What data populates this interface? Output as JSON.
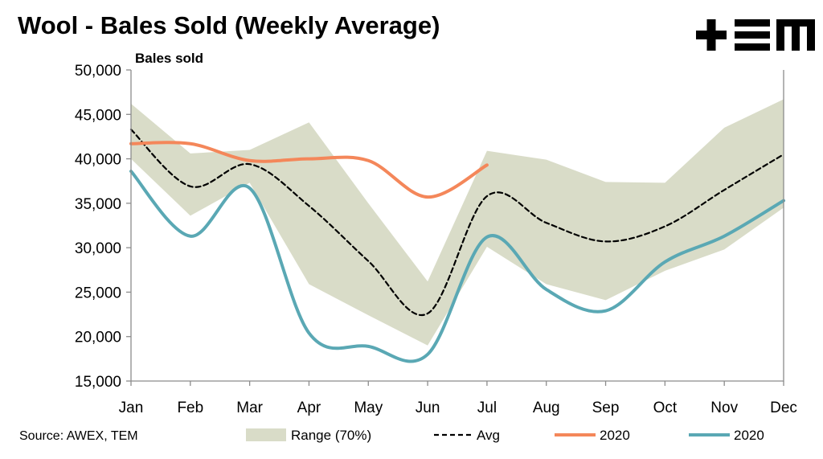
{
  "header": {
    "title": "Wool - Bales Sold (Weekly Average)",
    "logo_icon": "tem-logo-icon"
  },
  "footer": {
    "source": "Source: AWEX, TEM"
  },
  "colors": {
    "range_fill": "#d9dcc8",
    "avg_line": "#000000",
    "orange_2020": "#f4875a",
    "teal_2020": "#5aa8b4",
    "axis": "#8c8c8c"
  },
  "chart_data": {
    "type": "line",
    "title": "Wool - Bales Sold (Weekly Average)",
    "ylabel": "Bales sold",
    "xlabel": "",
    "categories": [
      "Jan",
      "Feb",
      "Mar",
      "Apr",
      "May",
      "Jun",
      "Jul",
      "Aug",
      "Sep",
      "Oct",
      "Nov",
      "Dec"
    ],
    "ylim": [
      15000,
      50000
    ],
    "yticks": [
      "15,000",
      "20,000",
      "25,000",
      "30,000",
      "35,000",
      "40,000",
      "45,000",
      "50,000"
    ],
    "ytick_values": [
      15000,
      20000,
      25000,
      30000,
      35000,
      40000,
      45000,
      50000
    ],
    "grid": false,
    "legend_position": "bottom",
    "range": {
      "name": "Range (70%)",
      "upper": [
        46200,
        40600,
        41000,
        44100,
        35000,
        26200,
        40900,
        39900,
        37400,
        37300,
        43500,
        46700
      ],
      "lower": [
        40000,
        33600,
        37300,
        25900,
        22400,
        19000,
        30100,
        25900,
        24100,
        27400,
        29800,
        34500
      ]
    },
    "series": [
      {
        "name": "Avg",
        "style": "dashed",
        "values": [
          43300,
          36900,
          39400,
          34700,
          28500,
          22600,
          35800,
          32800,
          30700,
          32400,
          36500,
          40500
        ]
      },
      {
        "name": "2020",
        "style": "solid-orange",
        "values": [
          41700,
          41700,
          39800,
          40000,
          39800,
          35700,
          39300,
          null,
          null,
          null,
          null,
          null
        ]
      },
      {
        "name": "2020",
        "style": "solid-teal",
        "values": [
          38600,
          31300,
          36700,
          20400,
          18900,
          18000,
          31200,
          25300,
          22900,
          28400,
          31300,
          35300
        ]
      }
    ]
  }
}
